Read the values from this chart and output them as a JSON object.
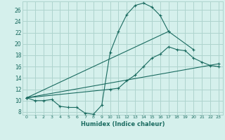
{
  "title": "",
  "xlabel": "Humidex (Indice chaleur)",
  "bg_color": "#d5f0ec",
  "grid_color": "#aed4ce",
  "line_color": "#1a6b60",
  "xlim": [
    -0.5,
    23.5
  ],
  "ylim": [
    7.5,
    27.5
  ],
  "xticks": [
    0,
    1,
    2,
    3,
    4,
    5,
    6,
    7,
    8,
    9,
    10,
    11,
    12,
    13,
    14,
    15,
    16,
    17,
    18,
    19,
    20,
    21,
    22,
    23
  ],
  "yticks": [
    8,
    10,
    12,
    14,
    16,
    18,
    20,
    22,
    24,
    26
  ],
  "lines": [
    {
      "x": [
        0,
        1,
        2,
        3,
        4,
        5,
        6,
        7,
        8,
        9,
        10,
        11,
        12,
        13,
        14,
        15,
        16,
        17
      ],
      "y": [
        10.5,
        10.0,
        10.0,
        10.2,
        9.0,
        8.8,
        8.8,
        7.8,
        7.6,
        9.2,
        18.5,
        22.2,
        25.2,
        26.8,
        27.2,
        26.5,
        25.0,
        22.2
      ]
    },
    {
      "x": [
        0,
        10,
        11,
        12,
        13,
        14,
        15,
        16,
        17,
        18,
        19,
        20,
        21,
        22,
        23
      ],
      "y": [
        10.5,
        12.0,
        12.2,
        13.5,
        14.5,
        16.0,
        17.5,
        18.2,
        19.5,
        19.0,
        18.8,
        17.5,
        16.8,
        16.2,
        16.0
      ]
    },
    {
      "x": [
        0,
        23
      ],
      "y": [
        10.5,
        16.5
      ]
    },
    {
      "x": [
        0,
        17,
        20
      ],
      "y": [
        10.5,
        22.2,
        19.0
      ]
    }
  ]
}
